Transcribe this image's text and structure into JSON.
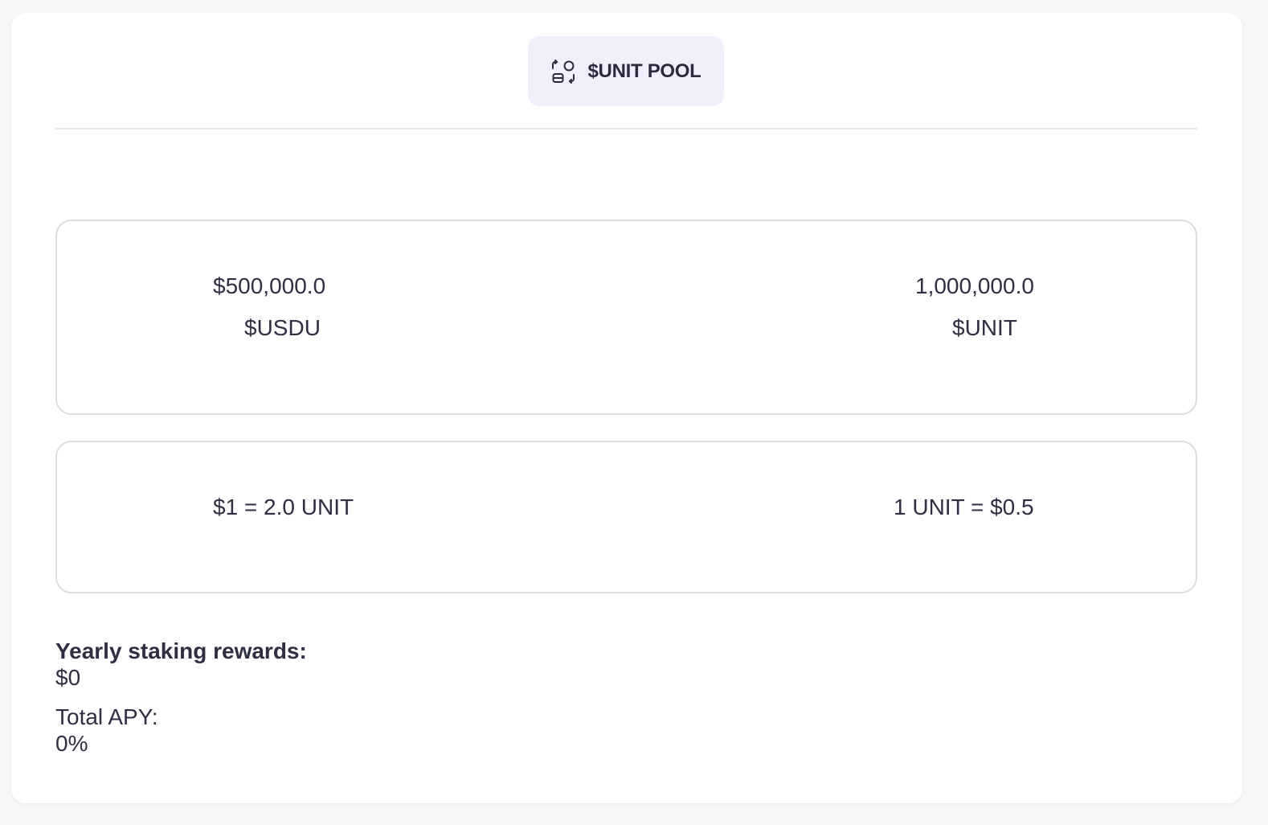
{
  "pool_tab": {
    "icon": "pool-swap-icon",
    "label": "$UNIT POOL"
  },
  "reserves": {
    "left": {
      "amount": "$500,000.0",
      "token": "$USDU"
    },
    "right": {
      "amount": "1,000,000.0",
      "token": "$UNIT"
    }
  },
  "rates": {
    "left": "$1 = 2.0 UNIT",
    "right": "1 UNIT = $0.5"
  },
  "stats": {
    "rewards_label": "Yearly staking rewards:",
    "rewards_value": "$0",
    "apy_label": "Total APY:",
    "apy_value": "0%"
  }
}
